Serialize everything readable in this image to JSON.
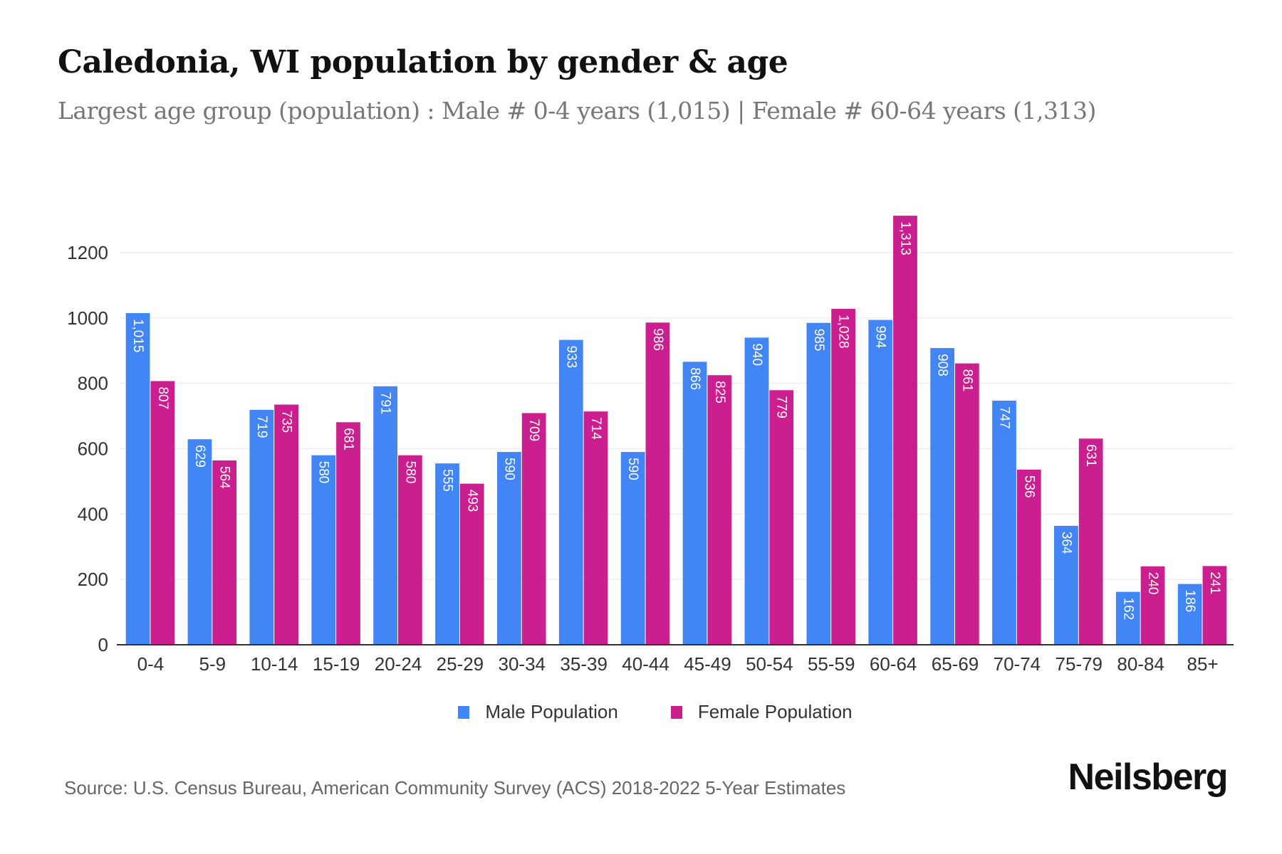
{
  "header": {
    "title": "Caledonia, WI population by gender & age",
    "subtitle": "Largest age group (population) : Male # 0-4 years (1,015) | Female # 60-64 years (1,313)"
  },
  "footer": {
    "source": "Source: U.S. Census Bureau, American Community Survey (ACS) 2018-2022 5-Year Estimates",
    "brand": "Neilsberg"
  },
  "colors": {
    "male": "#4285f4",
    "female": "#cc1f8f",
    "grid": "#ececec",
    "axis": "#333333"
  },
  "chart_data": {
    "type": "bar",
    "title": "Caledonia, WI population by gender & age",
    "xlabel": "",
    "ylabel": "",
    "ylim": [
      0,
      1200
    ],
    "y_ticks": [
      0,
      200,
      400,
      600,
      800,
      1000,
      1200
    ],
    "grid": true,
    "legend_position": "bottom-center",
    "categories": [
      "0-4",
      "5-9",
      "10-14",
      "15-19",
      "20-24",
      "25-29",
      "30-34",
      "35-39",
      "40-44",
      "45-49",
      "50-54",
      "55-59",
      "60-64",
      "65-69",
      "70-74",
      "75-79",
      "80-84",
      "85+"
    ],
    "series": [
      {
        "name": "Male Population",
        "color": "#4285f4",
        "values": [
          1015,
          629,
          719,
          580,
          791,
          555,
          590,
          933,
          590,
          866,
          940,
          985,
          994,
          908,
          747,
          364,
          162,
          186
        ],
        "labels": [
          "1,015",
          "629",
          "719",
          "580",
          "791",
          "555",
          "590",
          "933",
          "590",
          "866",
          "940",
          "985",
          "994",
          "908",
          "747",
          "364",
          "162",
          "186"
        ]
      },
      {
        "name": "Female Population",
        "color": "#cc1f8f",
        "values": [
          807,
          564,
          735,
          681,
          580,
          493,
          709,
          714,
          986,
          825,
          779,
          1028,
          1313,
          861,
          536,
          631,
          240,
          241
        ],
        "labels": [
          "807",
          "564",
          "735",
          "681",
          "580",
          "493",
          "709",
          "714",
          "986",
          "825",
          "779",
          "1,028",
          "1,313",
          "861",
          "536",
          "631",
          "240",
          "241"
        ]
      }
    ]
  }
}
